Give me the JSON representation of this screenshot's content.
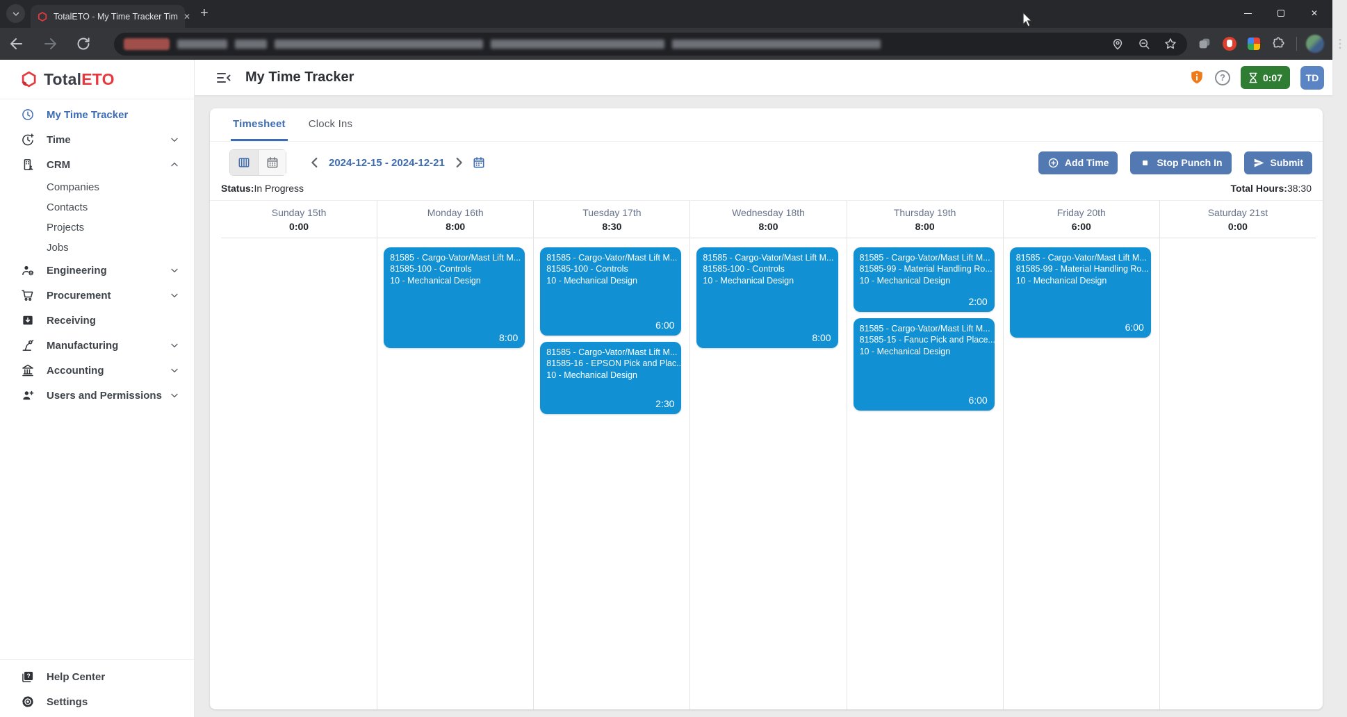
{
  "browser": {
    "tab_title": "TotalETO - My Time Tracker Tim",
    "tab_close": "✕",
    "new_tab": "+",
    "window_close": "✕"
  },
  "sidebar": {
    "logo_total": "Total",
    "logo_eto": "ETO",
    "items": [
      {
        "id": "my-time-tracker",
        "label": "My Time Tracker",
        "icon": "clock-icon",
        "active": true
      },
      {
        "id": "time",
        "label": "Time",
        "icon": "clock-plus-icon",
        "chevron": "down"
      },
      {
        "id": "crm",
        "label": "CRM",
        "icon": "crm-icon",
        "chevron": "up",
        "children": [
          "Companies",
          "Contacts",
          "Projects",
          "Jobs"
        ]
      },
      {
        "id": "engineering",
        "label": "Engineering",
        "icon": "engineering-icon",
        "chevron": "down"
      },
      {
        "id": "procurement",
        "label": "Procurement",
        "icon": "procurement-icon",
        "chevron": "down"
      },
      {
        "id": "receiving",
        "label": "Receiving",
        "icon": "receiving-icon"
      },
      {
        "id": "manufacturing",
        "label": "Manufacturing",
        "icon": "manufacturing-icon",
        "chevron": "down"
      },
      {
        "id": "accounting",
        "label": "Accounting",
        "icon": "accounting-icon",
        "chevron": "down"
      },
      {
        "id": "users-and-permissions",
        "label": "Users and Permissions",
        "icon": "user-plus-icon",
        "chevron": "down"
      }
    ],
    "footer_items": [
      {
        "id": "help-center",
        "label": "Help Center",
        "icon": "help-box-icon"
      },
      {
        "id": "settings",
        "label": "Settings",
        "icon": "gear-icon"
      }
    ]
  },
  "header": {
    "title": "My Time Tracker",
    "timer": "0:07",
    "avatar_initials": "TD"
  },
  "tabs": [
    {
      "label": "Timesheet",
      "active": true
    },
    {
      "label": "Clock Ins",
      "active": false
    }
  ],
  "controls": {
    "date_range": "2024-12-15 - 2024-12-21",
    "buttons": [
      {
        "id": "add-time",
        "label": "Add Time",
        "icon": "plus-circle-icon"
      },
      {
        "id": "stop-punch-in",
        "label": "Stop Punch In",
        "icon": "stop-icon"
      },
      {
        "id": "submit",
        "label": "Submit",
        "icon": "send-icon"
      }
    ]
  },
  "status": {
    "label": "Status:",
    "value": "In Progress",
    "total_label": "Total Hours:",
    "total_value": "38:30"
  },
  "calendar": {
    "days": [
      {
        "name": "Sunday 15th",
        "total": "0:00",
        "events": []
      },
      {
        "name": "Monday 16th",
        "total": "8:00",
        "events": [
          {
            "job": "81585 - Cargo-Vator/Mast Lift M...",
            "task": "81585-100 - Controls",
            "activity": "10 - Mechanical Design",
            "duration": "8:00",
            "h": 145
          }
        ]
      },
      {
        "name": "Tuesday 17th",
        "total": "8:30",
        "events": [
          {
            "job": "81585 - Cargo-Vator/Mast Lift M...",
            "task": "81585-100 - Controls",
            "activity": "10 - Mechanical Design",
            "duration": "6:00",
            "h": 127
          },
          {
            "job": "81585 - Cargo-Vator/Mast Lift M...",
            "task": "81585-16 - EPSON Pick and Plac...",
            "activity": "10 - Mechanical Design",
            "duration": "2:30",
            "h": 104
          }
        ]
      },
      {
        "name": "Wednesday 18th",
        "total": "8:00",
        "events": [
          {
            "job": "81585 - Cargo-Vator/Mast Lift M...",
            "task": "81585-100 - Controls",
            "activity": "10 - Mechanical Design",
            "duration": "8:00",
            "h": 145
          }
        ]
      },
      {
        "name": "Thursday 19th",
        "total": "8:00",
        "events": [
          {
            "job": "81585 - Cargo-Vator/Mast Lift M...",
            "task": "81585-99 - Material Handling Ro...",
            "activity": "10 - Mechanical Design",
            "duration": "2:00",
            "h": 93
          },
          {
            "job": "81585 - Cargo-Vator/Mast Lift M...",
            "task": "81585-15 - Fanuc Pick and Place...",
            "activity": "10 - Mechanical Design",
            "duration": "6:00",
            "h": 133
          }
        ]
      },
      {
        "name": "Friday 20th",
        "total": "6:00",
        "events": [
          {
            "job": "81585 - Cargo-Vator/Mast Lift M...",
            "task": "81585-99 - Material Handling Ro...",
            "activity": "10 - Mechanical Design",
            "duration": "6:00",
            "h": 130
          }
        ]
      },
      {
        "name": "Saturday 21st",
        "total": "0:00",
        "events": []
      }
    ]
  },
  "colors": {
    "accent_blue": "#3d6cb4",
    "event_blue": "#1191d3",
    "button_blue": "#5379b2",
    "timer_green": "#2e7d32",
    "brand_red": "#e6393f",
    "alert_orange": "#ef7a1a",
    "avatar_blue": "#5b84c4"
  }
}
